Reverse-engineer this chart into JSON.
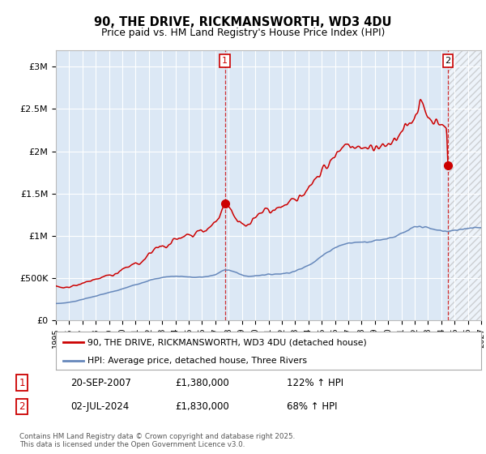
{
  "title": "90, THE DRIVE, RICKMANSWORTH, WD3 4DU",
  "subtitle": "Price paid vs. HM Land Registry's House Price Index (HPI)",
  "red_label": "90, THE DRIVE, RICKMANSWORTH, WD3 4DU (detached house)",
  "blue_label": "HPI: Average price, detached house, Three Rivers",
  "annotation1_date": "20-SEP-2007",
  "annotation1_price": "£1,380,000",
  "annotation1_hpi": "122% ↑ HPI",
  "annotation2_date": "02-JUL-2024",
  "annotation2_price": "£1,830,000",
  "annotation2_hpi": "68% ↑ HPI",
  "vline1_x": 2007.72,
  "vline2_x": 2024.5,
  "point1_x": 2007.72,
  "point1_y": 1380000,
  "point2_x": 2024.5,
  "point2_y": 1830000,
  "xmin": 1995.0,
  "xmax": 2027.0,
  "ymin": 0,
  "ymax": 3200000,
  "yticks": [
    0,
    500000,
    1000000,
    1500000,
    2000000,
    2500000,
    3000000
  ],
  "ytick_labels": [
    "£0",
    "£500K",
    "£1M",
    "£1.5M",
    "£2M",
    "£2.5M",
    "£3M"
  ],
  "bg_color": "#ffffff",
  "plot_bg_color": "#dce8f5",
  "hatch_bg_color": "#e8e8e8",
  "red_color": "#cc0000",
  "blue_color": "#6688bb",
  "grid_color": "#ffffff",
  "footer_text": "Contains HM Land Registry data © Crown copyright and database right 2025.\nThis data is licensed under the Open Government Licence v3.0.",
  "xtick_years": [
    1995,
    1996,
    1997,
    1998,
    1999,
    2000,
    2001,
    2002,
    2003,
    2004,
    2005,
    2006,
    2007,
    2008,
    2009,
    2010,
    2011,
    2012,
    2013,
    2014,
    2015,
    2016,
    2017,
    2018,
    2019,
    2020,
    2021,
    2022,
    2023,
    2024,
    2025,
    2026,
    2027
  ]
}
